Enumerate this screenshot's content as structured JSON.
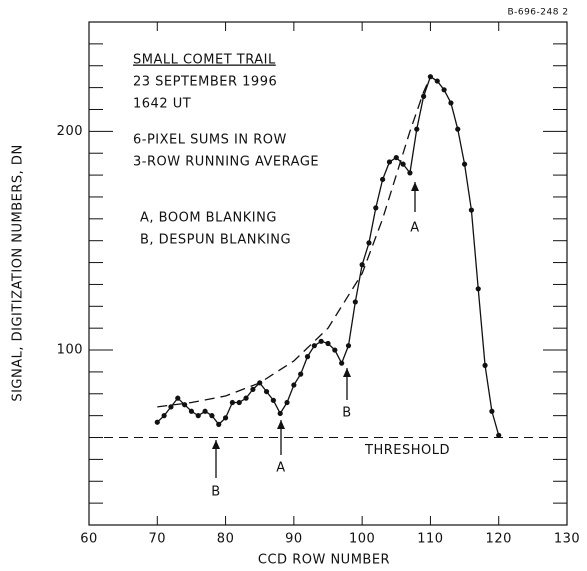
{
  "chart_data": {
    "type": "line",
    "id_label": "B-696-248 2",
    "title": "SMALL COMET TRAIL",
    "annotations": [
      "23 SEPTEMBER 1996",
      "1642 UT",
      "6-PIXEL SUMS IN ROW",
      "3-ROW RUNNING AVERAGE",
      "A, BOOM BLANKING",
      "B, DESPUN BLANKING"
    ],
    "arrow_labels": [
      "B",
      "A",
      "B",
      "A"
    ],
    "x_label": "CCD ROW NUMBER",
    "y_label": "SIGNAL, DIGITIZATION NUMBERS, DN",
    "threshold": 60,
    "threshold_label": "THRESHOLD",
    "xlim": [
      60,
      130
    ],
    "xticks": [
      60,
      70,
      80,
      90,
      100,
      110,
      120,
      130
    ],
    "ylim": [
      20,
      250
    ],
    "yticks": [
      100,
      200
    ],
    "yminorticks": [
      30,
      40,
      50,
      60,
      70,
      80,
      90,
      110,
      120,
      130,
      140,
      150,
      160,
      170,
      180,
      190,
      210,
      220,
      230,
      240
    ],
    "series": [
      {
        "color": "#111111",
        "style": "solid",
        "markers": true,
        "x": [
          70,
          71,
          72,
          73,
          74,
          75,
          76,
          77,
          78,
          79,
          80,
          81,
          82,
          83,
          84,
          85,
          86,
          87,
          88,
          89,
          90,
          91,
          92,
          93,
          94,
          95,
          96,
          97,
          98,
          99,
          100,
          101,
          102,
          103,
          104,
          105,
          106,
          107,
          108,
          109,
          110,
          111,
          112,
          113,
          114,
          115,
          116,
          117,
          118,
          119,
          120
        ],
        "values": [
          67,
          70,
          74,
          78,
          75,
          72,
          70,
          72,
          70,
          66,
          69,
          76,
          76,
          78,
          82,
          85,
          81,
          77,
          71,
          76,
          84,
          89,
          97,
          102,
          104,
          103,
          100,
          94,
          102,
          122,
          139,
          149,
          165,
          178,
          186,
          188,
          185,
          181,
          201,
          216,
          225,
          223,
          219,
          213,
          201,
          185,
          164,
          128,
          93,
          72,
          61
        ]
      },
      {
        "color": "#111111",
        "style": "dashed",
        "markers": false,
        "x": [
          70,
          75,
          80,
          85,
          90,
          95,
          100,
          103,
          105,
          107,
          109,
          110
        ],
        "values": [
          74,
          76,
          79,
          85,
          95,
          110,
          135,
          160,
          180,
          200,
          218,
          225
        ]
      }
    ]
  }
}
